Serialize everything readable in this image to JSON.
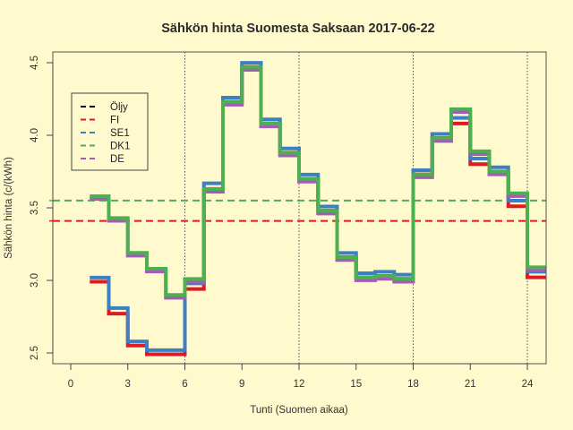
{
  "chart_data": {
    "type": "line",
    "step": true,
    "title": "Sähkön hinta Suomesta Saksaan 2017-06-22",
    "xlabel": "Tunti (Suomen aikaa)",
    "ylabel": "Sähkön hinta (c/(kWh)",
    "xlim": [
      -0.96,
      25
    ],
    "ylim": [
      2.43,
      4.57
    ],
    "xticks": [
      0,
      3,
      6,
      9,
      12,
      15,
      18,
      21,
      24
    ],
    "yticks": [
      2.5,
      3.0,
      3.5,
      4.0,
      4.5
    ],
    "vertical_reference_lines": [
      6,
      12,
      18,
      24
    ],
    "legend_position": "top-left",
    "legend": [
      {
        "label": "Öljy",
        "color": "#000000"
      },
      {
        "label": "FI",
        "color": "#df1a22"
      },
      {
        "label": "SE1",
        "color": "#3b7fc4"
      },
      {
        "label": "DK1",
        "color": "#4caf50"
      },
      {
        "label": "DE",
        "color": "#a35db5"
      }
    ],
    "x": [
      1,
      2,
      3,
      4,
      5,
      6,
      7,
      8,
      9,
      10,
      11,
      12,
      13,
      14,
      15,
      16,
      17,
      18,
      19,
      20,
      21,
      22,
      23,
      24
    ],
    "series": [
      {
        "name": "FI",
        "color": "#df1a22",
        "values": [
          3.0,
          2.78,
          2.56,
          2.5,
          2.5,
          2.95,
          3.64,
          4.24,
          4.48,
          4.09,
          3.89,
          3.71,
          3.49,
          3.17,
          3.03,
          3.04,
          3.02,
          3.74,
          3.99,
          4.09,
          3.81,
          3.76,
          3.52,
          3.03
        ]
      },
      {
        "name": "SE1",
        "color": "#3b7fc4",
        "values": [
          3.01,
          2.8,
          2.57,
          2.51,
          2.51,
          2.97,
          3.66,
          4.25,
          4.49,
          4.1,
          3.9,
          3.72,
          3.5,
          3.18,
          3.04,
          3.05,
          3.03,
          3.75,
          4.0,
          4.11,
          3.83,
          3.77,
          3.54,
          3.05
        ]
      },
      {
        "name": "DE",
        "color": "#a35db5",
        "values": [
          3.57,
          3.42,
          3.18,
          3.07,
          2.89,
          3.0,
          3.62,
          4.22,
          4.46,
          4.07,
          3.87,
          3.69,
          3.47,
          3.15,
          3.01,
          3.02,
          3.0,
          3.72,
          3.97,
          4.17,
          3.88,
          3.74,
          3.59,
          3.08
        ]
      },
      {
        "name": "DK1",
        "color": "#4caf50",
        "values": [
          3.58,
          3.43,
          3.19,
          3.08,
          2.9,
          3.01,
          3.63,
          4.23,
          4.47,
          4.08,
          3.88,
          3.7,
          3.48,
          3.16,
          3.02,
          3.03,
          3.01,
          3.73,
          3.98,
          4.18,
          3.89,
          3.75,
          3.6,
          3.09
        ]
      }
    ],
    "averages": [
      {
        "name": "FI average",
        "color": "#df1a22",
        "value": 3.41
      },
      {
        "name": "DK1 average",
        "color": "#4caf50",
        "value": 3.55
      }
    ]
  }
}
